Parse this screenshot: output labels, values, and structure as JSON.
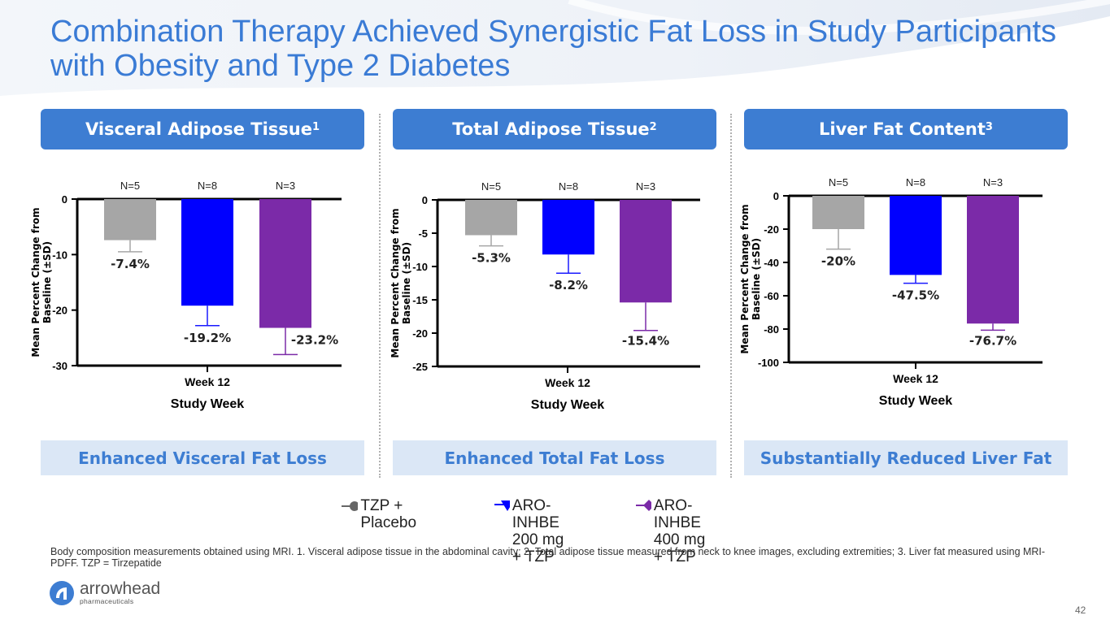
{
  "slide": {
    "title": "Combination Therapy Achieved Synergistic Fat Loss in Study Participants with Obesity and Type 2 Diabetes",
    "page_number": "42",
    "footnote": "Body composition measurements obtained using MRI. 1. Visceral adipose tissue in the abdominal cavity; 2. Total adipose tissue measured from neck to knee images, excluding extremities; 3. Liver fat measured using MRI-PDFF. TZP = Tirzepatide",
    "logo": {
      "name": "arrowhead",
      "sub": "pharmaceuticals"
    }
  },
  "panels": [
    {
      "heading": "Visceral Adipose Tissue",
      "sup": "1",
      "footer": "Enhanced Visceral Fat Loss"
    },
    {
      "heading": "Total Adipose Tissue",
      "sup": "2",
      "footer": "Enhanced Total Fat Loss"
    },
    {
      "heading": "Liver Fat Content",
      "sup": "3",
      "footer": "Substantially Reduced Liver Fat"
    }
  ],
  "legend": [
    {
      "label": "TZP + Placebo",
      "color": "#666666",
      "marker": "circle"
    },
    {
      "label_line1": "ARO-INHBE",
      "label_line2": "200 mg + TZP",
      "color": "#0000ff",
      "marker": "triangle-down"
    },
    {
      "label_line1": "ARO-INHBE",
      "label_line2": "400 mg + TZP",
      "color": "#7b2aa8",
      "marker": "diamond"
    }
  ],
  "colors": {
    "accent": "#3d7dd2",
    "placebo": "#a6a6a6",
    "dose200": "#0000ff",
    "dose400": "#7b2aa8",
    "error_placebo": "#a6a6a6",
    "error_200": "#1a1aff",
    "error_400": "#7b2aa8"
  },
  "chart_data": [
    {
      "type": "bar",
      "title": "Visceral Adipose Tissue",
      "ylabel": "Mean Percent Change from Baseline (±SD)",
      "xlabel": "Study Week",
      "categories": [
        "Week 12"
      ],
      "ylim": [
        -30,
        0
      ],
      "yticks": [
        0,
        -10,
        -20,
        -30
      ],
      "series": [
        {
          "name": "TZP + Placebo",
          "n": "N=5",
          "value": -7.4,
          "err": 2.1,
          "label": "-7.4%"
        },
        {
          "name": "ARO-INHBE 200 mg + TZP",
          "n": "N=8",
          "value": -19.2,
          "err": 3.6,
          "label": "-19.2%"
        },
        {
          "name": "ARO-INHBE 400 mg + TZP",
          "n": "N=3",
          "value": -23.2,
          "err": 4.8,
          "label": "-23.2%"
        }
      ]
    },
    {
      "type": "bar",
      "title": "Total Adipose Tissue",
      "ylabel": "Mean Percent Change from Baseline (±SD)",
      "xlabel": "Study Week",
      "categories": [
        "Week 12"
      ],
      "ylim": [
        -25,
        0
      ],
      "yticks": [
        0,
        -5,
        -10,
        -15,
        -20,
        -25
      ],
      "series": [
        {
          "name": "TZP + Placebo",
          "n": "N=5",
          "value": -5.3,
          "err": 1.6,
          "label": "-5.3%"
        },
        {
          "name": "ARO-INHBE 200 mg + TZP",
          "n": "N=8",
          "value": -8.2,
          "err": 2.8,
          "label": "-8.2%"
        },
        {
          "name": "ARO-INHBE 400 mg + TZP",
          "n": "N=3",
          "value": -15.4,
          "err": 4.2,
          "label": "-15.4%"
        }
      ]
    },
    {
      "type": "bar",
      "title": "Liver Fat Content",
      "ylabel": "Mean Percent Change from Baseline (±SD)",
      "xlabel": "Study Week",
      "categories": [
        "Week 12"
      ],
      "ylim": [
        -100,
        0
      ],
      "yticks": [
        0,
        -20,
        -40,
        -60,
        -80,
        -100
      ],
      "series": [
        {
          "name": "TZP + Placebo",
          "n": "N=5",
          "value": -20,
          "err": 12,
          "label": "-20%"
        },
        {
          "name": "ARO-INHBE 200 mg + TZP",
          "n": "N=8",
          "value": -47.5,
          "err": 5,
          "label": "-47.5%"
        },
        {
          "name": "ARO-INHBE 400 mg + TZP",
          "n": "N=3",
          "value": -76.7,
          "err": 4,
          "label": "-76.7%"
        }
      ]
    }
  ]
}
